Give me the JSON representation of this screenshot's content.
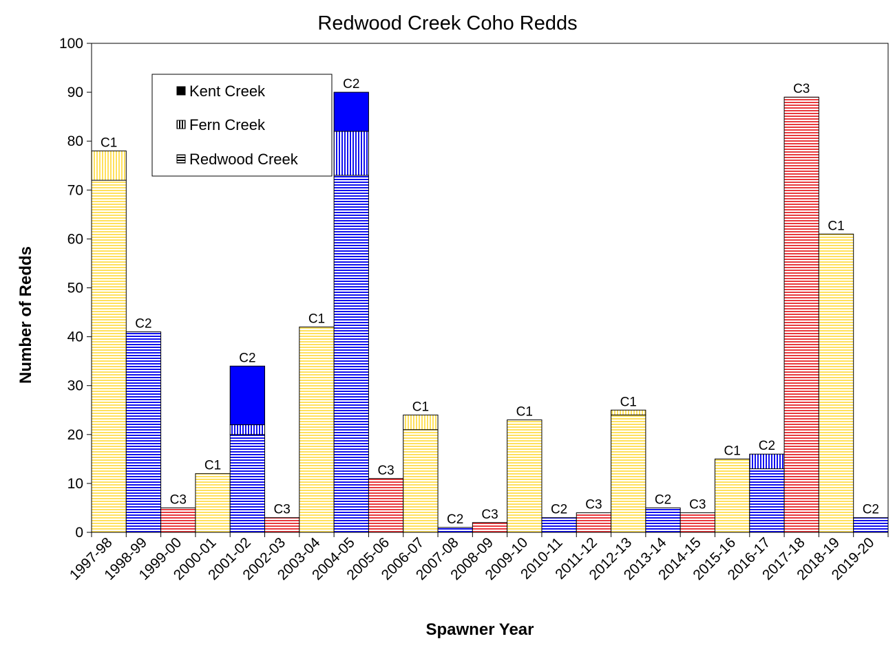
{
  "chart_data": {
    "type": "bar",
    "stacked": true,
    "title": "Redwood Creek Coho Redds",
    "xlabel": "Spawner Year",
    "ylabel": "Number of Redds",
    "ylim": [
      0,
      100
    ],
    "yticks": [
      0,
      10,
      20,
      30,
      40,
      50,
      60,
      70,
      80,
      90,
      100
    ],
    "grid": false,
    "legend_position": "top-left",
    "legend": [
      {
        "name": "Kent Creek",
        "pattern": "solid"
      },
      {
        "name": "Fern Creek",
        "pattern": "vertical-stripes"
      },
      {
        "name": "Redwood Creek",
        "pattern": "horizontal-stripes"
      }
    ],
    "cohort_colors": {
      "C1": "#FFE05C",
      "C2": "#1010EE",
      "C3": "#E8383C"
    },
    "solid_colors": {
      "C1": "#FFE05C",
      "C2": "#0000FF",
      "C3": "#E8383C"
    },
    "categories": [
      "1997-98",
      "1998-99",
      "1999-00",
      "2000-01",
      "2001-02",
      "2002-03",
      "2003-04",
      "2004-05",
      "2005-06",
      "2006-07",
      "2007-08",
      "2008-09",
      "2009-10",
      "2010-11",
      "2011-12",
      "2012-13",
      "2013-14",
      "2014-15",
      "2015-16",
      "2016-17",
      "2017-18",
      "2018-19",
      "2019-20"
    ],
    "cohorts": [
      "C1",
      "C2",
      "C3",
      "C1",
      "C2",
      "C3",
      "C1",
      "C2",
      "C3",
      "C1",
      "C2",
      "C3",
      "C1",
      "C2",
      "C3",
      "C1",
      "C2",
      "C3",
      "C1",
      "C2",
      "C3",
      "C1",
      "C2"
    ],
    "series": [
      {
        "name": "Redwood Creek",
        "values": [
          72,
          41,
          5,
          12,
          20,
          3,
          42,
          73,
          11,
          21,
          1,
          2,
          23,
          3,
          4,
          24,
          5,
          4,
          15,
          13,
          89,
          61,
          3
        ]
      },
      {
        "name": "Fern Creek",
        "values": [
          6,
          0,
          0,
          0,
          2,
          0,
          0,
          9,
          0,
          3,
          0,
          0,
          0,
          0,
          0,
          1,
          0,
          0,
          0,
          3,
          0,
          0,
          0
        ]
      },
      {
        "name": "Kent Creek",
        "values": [
          0,
          0,
          0,
          0,
          12,
          0,
          0,
          8,
          0,
          0,
          0,
          0,
          0,
          0,
          0,
          0,
          0,
          0,
          0,
          0,
          0,
          0,
          0
        ]
      }
    ]
  }
}
